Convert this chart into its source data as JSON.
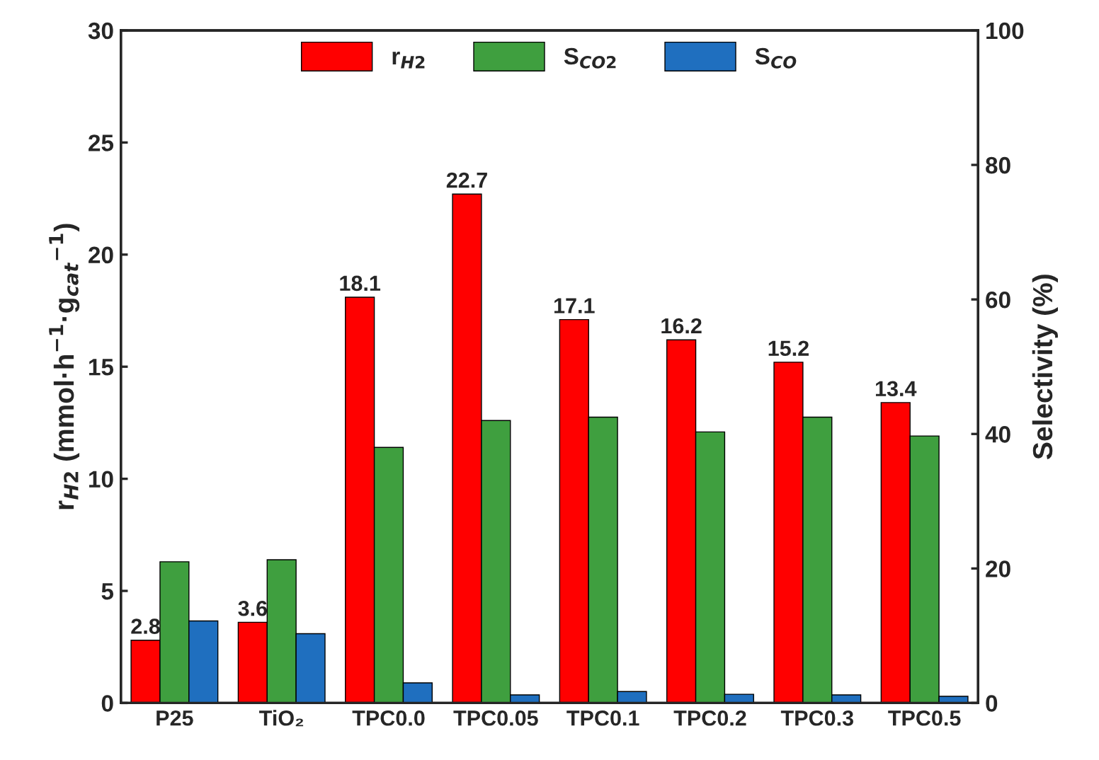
{
  "chart_data": {
    "type": "bar",
    "categories": [
      "P25",
      "TiO₂",
      "TPC0.0",
      "TPC0.05",
      "TPC0.1",
      "TPC0.2",
      "TPC0.3",
      "TPC0.5"
    ],
    "ylabel": "r$_{H2}$ (mmol·h$^{−1}$·g$_{cat}$$^{−1}$)",
    "y2label": "Selectivity (%)",
    "ylim": [
      0,
      30
    ],
    "yticks": [
      0,
      5,
      10,
      15,
      20,
      25,
      30
    ],
    "y2lim": [
      0,
      100
    ],
    "y2ticks": [
      0,
      20,
      40,
      60,
      80,
      100
    ],
    "legend": "top",
    "grid": false,
    "series": [
      {
        "name": "r$_{H2}$",
        "color": "#ff0000",
        "values": [
          2.8,
          3.6,
          18.1,
          22.7,
          17.1,
          16.2,
          15.2,
          13.4
        ],
        "value_labels": [
          "2.8",
          "3.6",
          "18.1",
          "22.7",
          "17.1",
          "16.2",
          "15.2",
          "13.4"
        ]
      },
      {
        "name": "S$_{CO2}$",
        "color": "#3f9f3f",
        "axis": "y2",
        "values": [
          21,
          21.3,
          38,
          42,
          42.5,
          40.3,
          42.5,
          39.7
        ]
      },
      {
        "name": "S$_{CO}$",
        "color": "#1f6fbf",
        "axis": "y2",
        "values": [
          12.2,
          10.3,
          3,
          1.2,
          1.7,
          1.3,
          1.2,
          1
        ]
      }
    ]
  }
}
